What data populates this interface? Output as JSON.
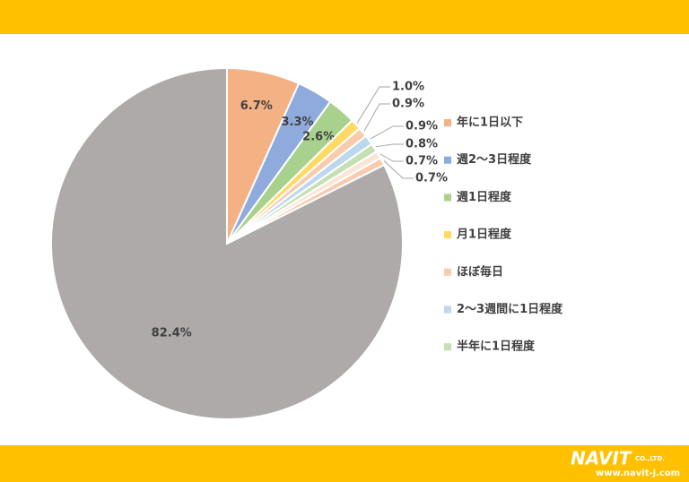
{
  "chart_data": {
    "type": "pie",
    "categories": [
      "年に1日以下",
      "週2〜3日程度",
      "週1日程度",
      "月1日程度",
      "ほぼ毎日",
      "2〜3週間に1日程度",
      "半年に1日程度",
      null,
      null,
      null
    ],
    "values": [
      6.7,
      3.3,
      2.6,
      1.0,
      0.9,
      0.9,
      0.8,
      0.7,
      0.7,
      82.4
    ],
    "value_labels": [
      "6.7%",
      "3.3%",
      "2.6%",
      "1.0%",
      "0.9%",
      "0.9%",
      "0.8%",
      "0.7%",
      "0.7%",
      "82.4%"
    ],
    "colors": [
      "#f4b183",
      "#8faadc",
      "#a9d18e",
      "#ffd966",
      "#f8cbad",
      "#bdd7ee",
      "#c5e0b4",
      "#fbe5d6",
      "#f8cbad",
      "#aeaaaa"
    ],
    "legend": "right"
  },
  "footer": {
    "logo": "NAVIT",
    "company": "CO.,LTD.",
    "url": "www.navit-j.com"
  }
}
